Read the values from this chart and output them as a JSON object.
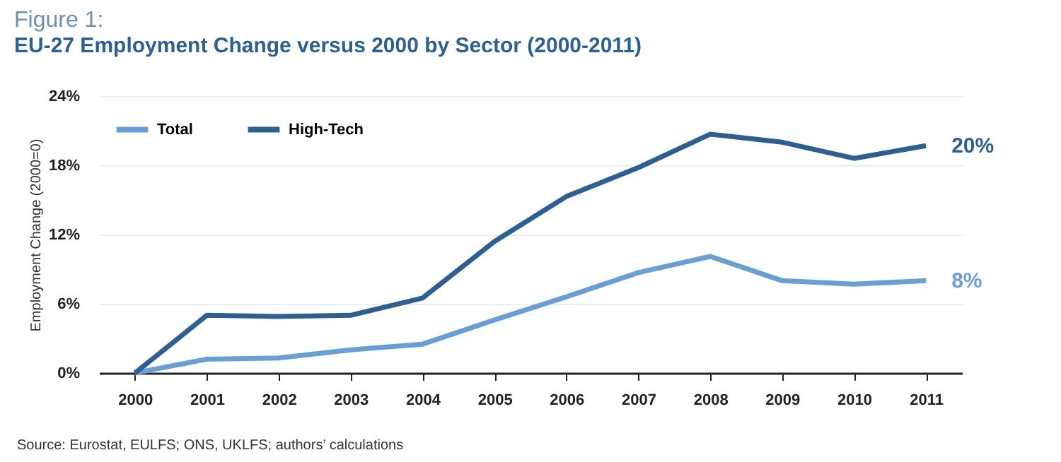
{
  "chart_data": {
    "type": "line",
    "title": "Figure 1:",
    "subtitle": "EU-27 Employment Change versus 2000 by Sector (2000-2011)",
    "ylabel": "Employment Change (2000=0)",
    "categories": [
      "2000",
      "2001",
      "2002",
      "2003",
      "2004",
      "2005",
      "2006",
      "2007",
      "2008",
      "2009",
      "2010",
      "2011"
    ],
    "series": [
      {
        "name": "Total",
        "color": "#6a9fd4",
        "values": [
          0,
          1.2,
          1.3,
          2.0,
          2.5,
          4.6,
          6.6,
          8.7,
          10.1,
          8.0,
          7.7,
          8.0
        ]
      },
      {
        "name": "High-Tech",
        "color": "#2d5f91",
        "values": [
          0,
          5.0,
          4.9,
          5.0,
          6.5,
          11.4,
          15.3,
          17.8,
          20.7,
          20.0,
          18.6,
          19.7
        ]
      }
    ],
    "ylim": [
      0,
      24
    ],
    "yticks": [
      {
        "value": 0,
        "label": "0%"
      },
      {
        "value": 6,
        "label": "6%"
      },
      {
        "value": 12,
        "label": "12%"
      },
      {
        "value": 18,
        "label": "18%"
      },
      {
        "value": 24,
        "label": "24%"
      }
    ],
    "grid": "y",
    "legend": "top left",
    "marker": "none",
    "line_style": "solid",
    "annotations": [
      {
        "text": "20%",
        "x": "2011",
        "y": 19.7
      },
      {
        "text": "8%",
        "x": "2011",
        "y": 8.0
      },
      "Source: Eurostat, EULFS; ONS, UKLFS; authors’ calculations"
    ]
  }
}
